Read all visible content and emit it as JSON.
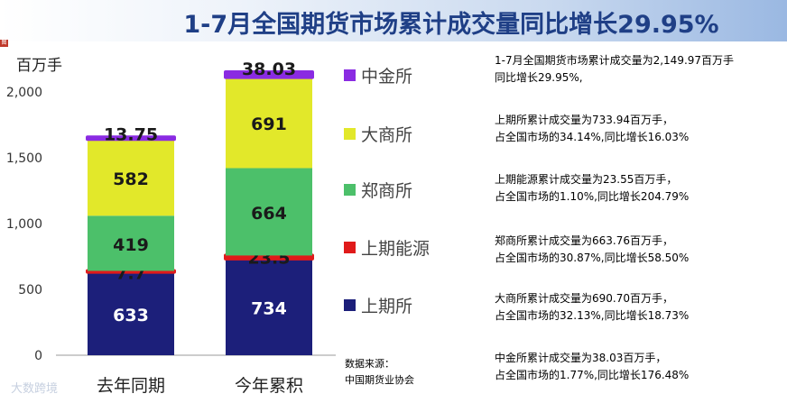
{
  "title": "1-7月全国期货市场累计成交量同比增长29.95%",
  "corner_mark": "图",
  "source": {
    "line1": "数据来源：",
    "line2": "中国期货业协会"
  },
  "watermark": "大数跨境",
  "notes": [
    {
      "line1": "1-7月全国期货市场累计成交量为2,149.97百万手",
      "line2": "同比增长29.95%,"
    },
    {
      "line1": "上期所累计成交量为733.94百万手，",
      "line2": "占全国市场的34.14%,同比增长16.03%"
    },
    {
      "line1": "上期能源累计成交量为23.55百万手，",
      "line2": "占全国市场的1.10%,同比增长204.79%"
    },
    {
      "line1": "郑商所累计成交量为663.76百万手，",
      "line2": "占全国市场的30.87%,同比增长58.50%"
    },
    {
      "line1": "大商所累计成交量为690.70百万手，",
      "line2": "占全国市场的32.13%,同比增长18.73%"
    },
    {
      "line1": "中金所累计成交量为38.03百万手，",
      "line2": "占全国市场的1.77%,同比增长176.48%"
    }
  ],
  "chart_data": {
    "type": "bar",
    "stacked": true,
    "ylabel": "百万手",
    "ylim": [
      0,
      2000
    ],
    "yticks": [
      0,
      500,
      1000,
      1500,
      2000
    ],
    "ytick_labels": [
      "0",
      "500",
      "1,000",
      "1,500",
      "2,000"
    ],
    "categories": [
      "去年同期",
      "今年累积"
    ],
    "series": [
      {
        "name": "上期所",
        "color": "#1c1f7a",
        "values": [
          633,
          734
        ],
        "labels": [
          "633",
          "734"
        ]
      },
      {
        "name": "上期能源",
        "color": "#e01a1a",
        "values": [
          7.7,
          23.5
        ],
        "labels": [
          "7.7",
          "23.5"
        ]
      },
      {
        "name": "郑商所",
        "color": "#4cc06a",
        "values": [
          419,
          664
        ],
        "labels": [
          "419",
          "664"
        ]
      },
      {
        "name": "大商所",
        "color": "#e2e82a",
        "values": [
          582,
          691
        ],
        "labels": [
          "582",
          "691"
        ]
      },
      {
        "name": "中金所",
        "color": "#8a2be2",
        "values": [
          13.75,
          38.03
        ],
        "labels": [
          "13.75",
          "38.03"
        ]
      }
    ],
    "legend_order": [
      "中金所",
      "大商所",
      "郑商所",
      "上期能源",
      "上期所"
    ],
    "legend_position": "right",
    "grid": false
  }
}
